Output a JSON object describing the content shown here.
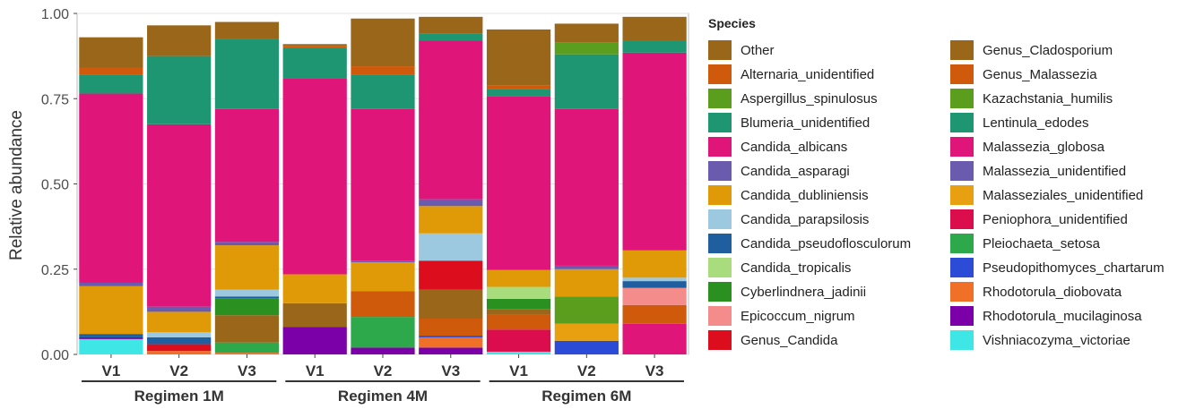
{
  "chart_data": {
    "type": "bar",
    "stacked": true,
    "ylabel": "Relative abundance",
    "ylim": [
      0,
      1
    ],
    "yticks": [
      "0.00",
      "0.25",
      "0.50",
      "0.75",
      "1.00"
    ],
    "ytick_values": [
      0,
      0.25,
      0.5,
      0.75,
      1.0
    ],
    "grid": true,
    "legend_title": "Species",
    "legend_position": "right",
    "categories": [
      "V1",
      "V2",
      "V3",
      "V1",
      "V2",
      "V3",
      "V1",
      "V2",
      "V3"
    ],
    "groups": [
      {
        "label": "Regimen 1M",
        "categories": [
          0,
          1,
          2
        ]
      },
      {
        "label": "Regimen 4M",
        "categories": [
          3,
          4,
          5
        ]
      },
      {
        "label": "Regimen 6M",
        "categories": [
          6,
          7,
          8
        ]
      }
    ],
    "series": [
      {
        "name": "Vishniacozyma_victoriae",
        "color": "#3EE6E6",
        "values": [
          0.045,
          0,
          0,
          0,
          0,
          0,
          0.008,
          0,
          0
        ]
      },
      {
        "name": "Rhodotorula_mucilaginosa",
        "color": "#7B00A8",
        "values": [
          0.005,
          0,
          0,
          0.08,
          0.02,
          0.02,
          0,
          0,
          0
        ]
      },
      {
        "name": "Rhodotorula_diobovata",
        "color": "#F07028",
        "values": [
          0,
          0.01,
          0.005,
          0,
          0,
          0.03,
          0,
          0,
          0
        ]
      },
      {
        "name": "Pseudopithomyces_chartarum",
        "color": "#2C4BD6",
        "values": [
          0,
          0,
          0,
          0,
          0,
          0.005,
          0,
          0.04,
          0
        ]
      },
      {
        "name": "Pleiochaeta_setosa",
        "color": "#2DA84A",
        "values": [
          0,
          0,
          0.03,
          0,
          0.09,
          0,
          0,
          0,
          0
        ]
      },
      {
        "name": "Peniophora_unidentified",
        "color": "#DC0D4D",
        "values": [
          0,
          0,
          0,
          0,
          0,
          0,
          0.065,
          0,
          0
        ]
      },
      {
        "name": "Malasseziales_unidentified",
        "color": "#E8A010",
        "values": [
          0,
          0,
          0,
          0,
          0,
          0,
          0,
          0.05,
          0
        ]
      },
      {
        "name": "Malassezia_unidentified",
        "color": "#6A5BAE",
        "values": [
          0,
          0,
          0,
          0,
          0,
          0,
          0,
          0,
          0
        ]
      },
      {
        "name": "Malassezia_globosa",
        "color": "#E0157A",
        "values": [
          0,
          0,
          0,
          0,
          0,
          0,
          0,
          0,
          0.09
        ]
      },
      {
        "name": "Lentinula_edodes",
        "color": "#1F9672",
        "values": [
          0,
          0,
          0,
          0,
          0,
          0,
          0,
          0,
          0
        ]
      },
      {
        "name": "Kazachstania_humilis",
        "color": "#5B9E1E",
        "values": [
          0,
          0,
          0,
          0,
          0,
          0,
          0,
          0.08,
          0
        ]
      },
      {
        "name": "Genus_Malassezia",
        "color": "#D05A0C",
        "values": [
          0,
          0,
          0,
          0,
          0.075,
          0.05,
          0.045,
          0,
          0.055
        ]
      },
      {
        "name": "Genus_Cladosporium",
        "color": "#99661A",
        "values": [
          0,
          0,
          0.08,
          0.07,
          0,
          0.085,
          0.015,
          0,
          0
        ]
      },
      {
        "name": "Genus_Candida",
        "color": "#DC0D1C",
        "values": [
          0,
          0.02,
          0,
          0,
          0,
          0.085,
          0,
          0,
          0
        ]
      },
      {
        "name": "Epicoccum_nigrum",
        "color": "#F48C8C",
        "values": [
          0,
          0,
          0,
          0,
          0,
          0,
          0,
          0,
          0.05
        ]
      },
      {
        "name": "Cyberlindnera_jadinii",
        "color": "#2A9020",
        "values": [
          0,
          0,
          0.05,
          0,
          0,
          0,
          0.03,
          0,
          0
        ]
      },
      {
        "name": "Candida_tropicalis",
        "color": "#A8DC7C",
        "values": [
          0,
          0,
          0,
          0,
          0,
          0,
          0.035,
          0,
          0
        ]
      },
      {
        "name": "Candida_pseudoflosculorum",
        "color": "#1F5FA0",
        "values": [
          0.01,
          0.02,
          0.005,
          0,
          0,
          0,
          0,
          0,
          0.02
        ]
      },
      {
        "name": "Candida_parapsilosis",
        "color": "#9CC8E0",
        "values": [
          0,
          0.015,
          0.02,
          0,
          0,
          0.08,
          0,
          0,
          0.01
        ]
      },
      {
        "name": "Candida_dubliniensis",
        "color": "#E09A08",
        "values": [
          0.14,
          0.06,
          0.13,
          0.085,
          0.085,
          0.08,
          0.05,
          0.08,
          0.08
        ]
      },
      {
        "name": "Candida_asparagi",
        "color": "#6A5BAE",
        "values": [
          0.01,
          0.015,
          0.01,
          0,
          0.005,
          0.02,
          0,
          0.01,
          0
        ]
      },
      {
        "name": "Candida_albicans",
        "color": "#E0157A",
        "values": [
          0.555,
          0.535,
          0.39,
          0.575,
          0.445,
          0.465,
          0.51,
          0.46,
          0.58
        ]
      },
      {
        "name": "Blumeria_unidentified",
        "color": "#1F9672",
        "values": [
          0.055,
          0.2,
          0.205,
          0.09,
          0.1,
          0.02,
          0.02,
          0.16,
          0.035
        ]
      },
      {
        "name": "Aspergillus_spinulosus",
        "color": "#5B9E1E",
        "values": [
          0,
          0,
          0,
          0,
          0,
          0,
          0,
          0.035,
          0
        ]
      },
      {
        "name": "Alternaria_unidentified",
        "color": "#D05A0C",
        "values": [
          0.02,
          0,
          0,
          0.005,
          0.025,
          0,
          0.01,
          0,
          0
        ]
      },
      {
        "name": "Other",
        "color": "#99661A",
        "values": [
          0.09,
          0.09,
          0.05,
          0.005,
          0.14,
          0.05,
          0.165,
          0.055,
          0.07
        ]
      }
    ],
    "legend_columns": [
      [
        "Other",
        "Alternaria_unidentified",
        "Aspergillus_spinulosus",
        "Blumeria_unidentified",
        "Candida_albicans",
        "Candida_asparagi",
        "Candida_dubliniensis",
        "Candida_parapsilosis",
        "Candida_pseudoflosculorum",
        "Candida_tropicalis",
        "Cyberlindnera_jadinii",
        "Epicoccum_nigrum",
        "Genus_Candida"
      ],
      [
        "Genus_Cladosporium",
        "Genus_Malassezia",
        "Kazachstania_humilis",
        "Lentinula_edodes",
        "Malassezia_globosa",
        "Malassezia_unidentified",
        "Malasseziales_unidentified",
        "Peniophora_unidentified",
        "Pleiochaeta_setosa",
        "Pseudopithomyces_chartarum",
        "Rhodotorula_diobovata",
        "Rhodotorula_mucilaginosa",
        "Vishniacozyma_victoriae"
      ]
    ]
  }
}
